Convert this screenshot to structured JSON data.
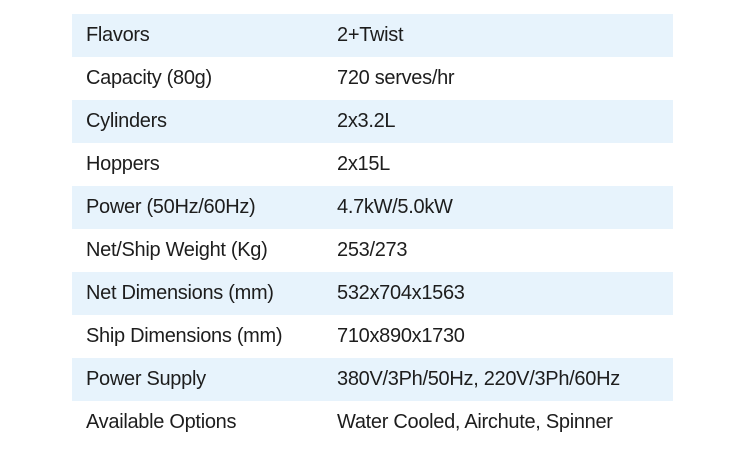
{
  "specs": [
    {
      "label": "Flavors",
      "value": "2+Twist",
      "shaded": true
    },
    {
      "label": "Capacity (80g)",
      "value": "720 serves/hr",
      "shaded": false
    },
    {
      "label": "Cylinders",
      "value": "2x3.2L",
      "shaded": true
    },
    {
      "label": "Hoppers",
      "value": "2x15L",
      "shaded": false
    },
    {
      "label": "Power (50Hz/60Hz)",
      "value": "4.7kW/5.0kW",
      "shaded": true
    },
    {
      "label": "Net/Ship Weight (Kg)",
      "value": "253/273",
      "shaded": false
    },
    {
      "label": "Net Dimensions (mm)",
      "value": "532x704x1563",
      "shaded": true
    },
    {
      "label": "Ship Dimensions (mm)",
      "value": "710x890x1730",
      "shaded": false
    },
    {
      "label": "Power Supply",
      "value": "380V/3Ph/50Hz, 220V/3Ph/60Hz",
      "shaded": true
    },
    {
      "label": "Available Options",
      "value": "Water Cooled, Airchute, Spinner",
      "shaded": false
    }
  ],
  "colors": {
    "shaded_row": "#e7f3fc",
    "text": "#1d1d1d",
    "background": "#ffffff"
  }
}
